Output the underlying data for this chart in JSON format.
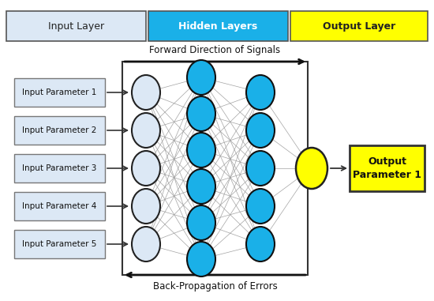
{
  "forward_label": "Forward Direction of Signals",
  "backward_label": "Back-Propagation of Errors",
  "input_labels": [
    "Input Parameter 1",
    "Input Parameter 2",
    "Input Parameter 3",
    "Input Parameter 4",
    "Input Parameter 5"
  ],
  "output_label": "Output\nParameter 1",
  "legend_input": "Input Layer",
  "legend_hidden": "Hidden Layers",
  "legend_output": "Output Layer",
  "input_color": "#dce8f5",
  "input_edge": "#222222",
  "hidden_color": "#1ab0e8",
  "hidden_edge": "#111111",
  "output_node_color": "#ffff00",
  "output_node_edge": "#222222",
  "output_box_color": "#ffff00",
  "output_box_edge": "#333333",
  "connection_color": "#999999",
  "arrow_color": "#111111",
  "legend_input_bg": "#dce8f5",
  "legend_hidden_bg": "#1ab0e8",
  "legend_output_bg": "#ffff00",
  "legend_border": "#555555",
  "bg_color": "#ffffff",
  "box_bg": "#dce8f5",
  "input_n": 5,
  "hidden1_n": 6,
  "hidden2_n": 5,
  "output_n": 1
}
